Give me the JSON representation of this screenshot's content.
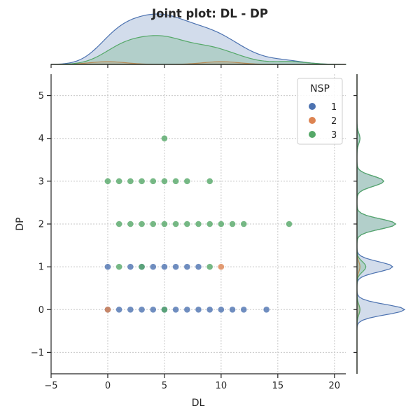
{
  "chart_data": {
    "type": "scatter",
    "title": "Joint plot: DL - DP",
    "xlabel": "DL",
    "ylabel": "DP",
    "xlim": [
      -5,
      21
    ],
    "ylim": [
      -1.5,
      5.5
    ],
    "xticks": [
      -5,
      0,
      5,
      10,
      15,
      20
    ],
    "yticks": [
      -1,
      0,
      1,
      2,
      3,
      4,
      5
    ],
    "x_tick_labels": [
      "−5",
      "0",
      "5",
      "10",
      "15",
      "20"
    ],
    "y_tick_labels": [
      "−1",
      "0",
      "1",
      "2",
      "3",
      "4",
      "5"
    ],
    "grid": true,
    "legend": {
      "title": "NSP",
      "position": "top-right"
    },
    "series": [
      {
        "name": "1",
        "color": "#4c72b0",
        "points": [
          [
            0,
            0
          ],
          [
            1,
            0
          ],
          [
            2,
            0
          ],
          [
            3,
            0
          ],
          [
            4,
            0
          ],
          [
            5,
            0
          ],
          [
            6,
            0
          ],
          [
            7,
            0
          ],
          [
            8,
            0
          ],
          [
            9,
            0
          ],
          [
            10,
            0
          ],
          [
            11,
            0
          ],
          [
            12,
            0
          ],
          [
            14,
            0
          ],
          [
            0,
            1
          ],
          [
            2,
            1
          ],
          [
            3,
            1
          ],
          [
            4,
            1
          ],
          [
            5,
            1
          ],
          [
            6,
            1
          ],
          [
            7,
            1
          ],
          [
            8,
            1
          ]
        ]
      },
      {
        "name": "2",
        "color": "#dd8452",
        "points": [
          [
            0,
            0
          ],
          [
            10,
            1
          ]
        ]
      },
      {
        "name": "3",
        "color": "#55a868",
        "points": [
          [
            5,
            0
          ],
          [
            1,
            1
          ],
          [
            3,
            1
          ],
          [
            9,
            1
          ],
          [
            1,
            2
          ],
          [
            2,
            2
          ],
          [
            3,
            2
          ],
          [
            4,
            2
          ],
          [
            5,
            2
          ],
          [
            6,
            2
          ],
          [
            7,
            2
          ],
          [
            8,
            2
          ],
          [
            9,
            2
          ],
          [
            10,
            2
          ],
          [
            11,
            2
          ],
          [
            12,
            2
          ],
          [
            16,
            2
          ],
          [
            0,
            3
          ],
          [
            1,
            3
          ],
          [
            2,
            3
          ],
          [
            3,
            3
          ],
          [
            4,
            3
          ],
          [
            5,
            3
          ],
          [
            6,
            3
          ],
          [
            7,
            3
          ],
          [
            9,
            3
          ],
          [
            5,
            4
          ]
        ]
      }
    ]
  }
}
